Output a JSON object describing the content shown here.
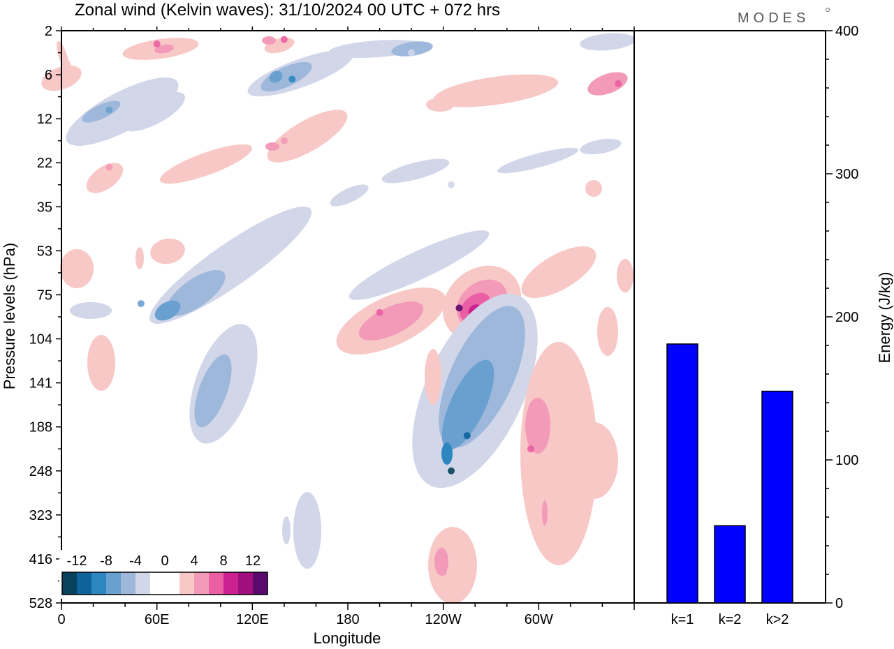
{
  "title": "Zonal wind (Kelvin waves):  31/10/2024  00 UTC  + 072 hrs",
  "logo": "MODES",
  "colors": {
    "neg": [
      "#08415c",
      "#0e639c",
      "#2e86c1",
      "#6aa0cf",
      "#9eb8dc",
      "#d2d6e9"
    ],
    "pos": [
      "#f7c8c6",
      "#f29ab8",
      "#ea5fa3",
      "#cc2190",
      "#a00f7d",
      "#5a0a6e"
    ],
    "bar": "#0000ff"
  },
  "chart_data": [
    {
      "type": "heatmap",
      "xlabel": "Longitude",
      "ylabel": "Pressure levels (hPa)",
      "x_ticks": [
        "0",
        "60E",
        "120E",
        "180",
        "120W",
        "60W"
      ],
      "y_ticks": [
        "2",
        "6",
        "12",
        "22",
        "35",
        "53",
        "75",
        "104",
        "141",
        "188",
        "248",
        "323",
        "416",
        "528"
      ],
      "colorbar_labels": [
        "-12",
        "-8",
        "-4",
        "0",
        "4",
        "8",
        "12"
      ],
      "colorbar_levels": [
        -12,
        -10,
        -8,
        -6,
        -4,
        -2,
        2,
        4,
        6,
        8,
        10,
        12
      ],
      "features": [
        {
          "lon": 60,
          "level_index": 0.3,
          "value": 6
        },
        {
          "lon": 140,
          "level_index": 0.2,
          "value": 6
        },
        {
          "lon": 220,
          "level_index": 0.5,
          "value": -3
        },
        {
          "lon": 145,
          "level_index": 1.1,
          "value": -8
        },
        {
          "lon": 30,
          "level_index": 1.8,
          "value": -6
        },
        {
          "lon": 350,
          "level_index": 1.2,
          "value": 6
        },
        {
          "lon": 140,
          "level_index": 2.5,
          "value": 5
        },
        {
          "lon": 30,
          "level_index": 3.1,
          "value": 4
        },
        {
          "lon": 245,
          "level_index": 3.5,
          "value": -3
        },
        {
          "lon": 50,
          "level_index": 6.2,
          "value": -6
        },
        {
          "lon": 200,
          "level_index": 6.4,
          "value": 7
        },
        {
          "lon": 250,
          "level_index": 6.3,
          "value": 12
        },
        {
          "lon": 90,
          "level_index": 8.5,
          "value": -5
        },
        {
          "lon": 255,
          "level_index": 9.2,
          "value": -10
        },
        {
          "lon": 245,
          "level_index": 10.0,
          "value": -12
        },
        {
          "lon": 295,
          "level_index": 9.5,
          "value": 6
        },
        {
          "lon": 24,
          "level_index": 8.0,
          "value": 3
        },
        {
          "lon": 240,
          "level_index": 12.3,
          "value": 5
        }
      ]
    },
    {
      "type": "bar",
      "categories": [
        "k=1",
        "k=2",
        "k>2"
      ],
      "values": [
        181,
        54,
        148
      ],
      "ylabel": "Energy (J/kg)",
      "ylim": [
        0,
        400
      ],
      "y_ticks": [
        0,
        100,
        200,
        300,
        400
      ]
    }
  ]
}
